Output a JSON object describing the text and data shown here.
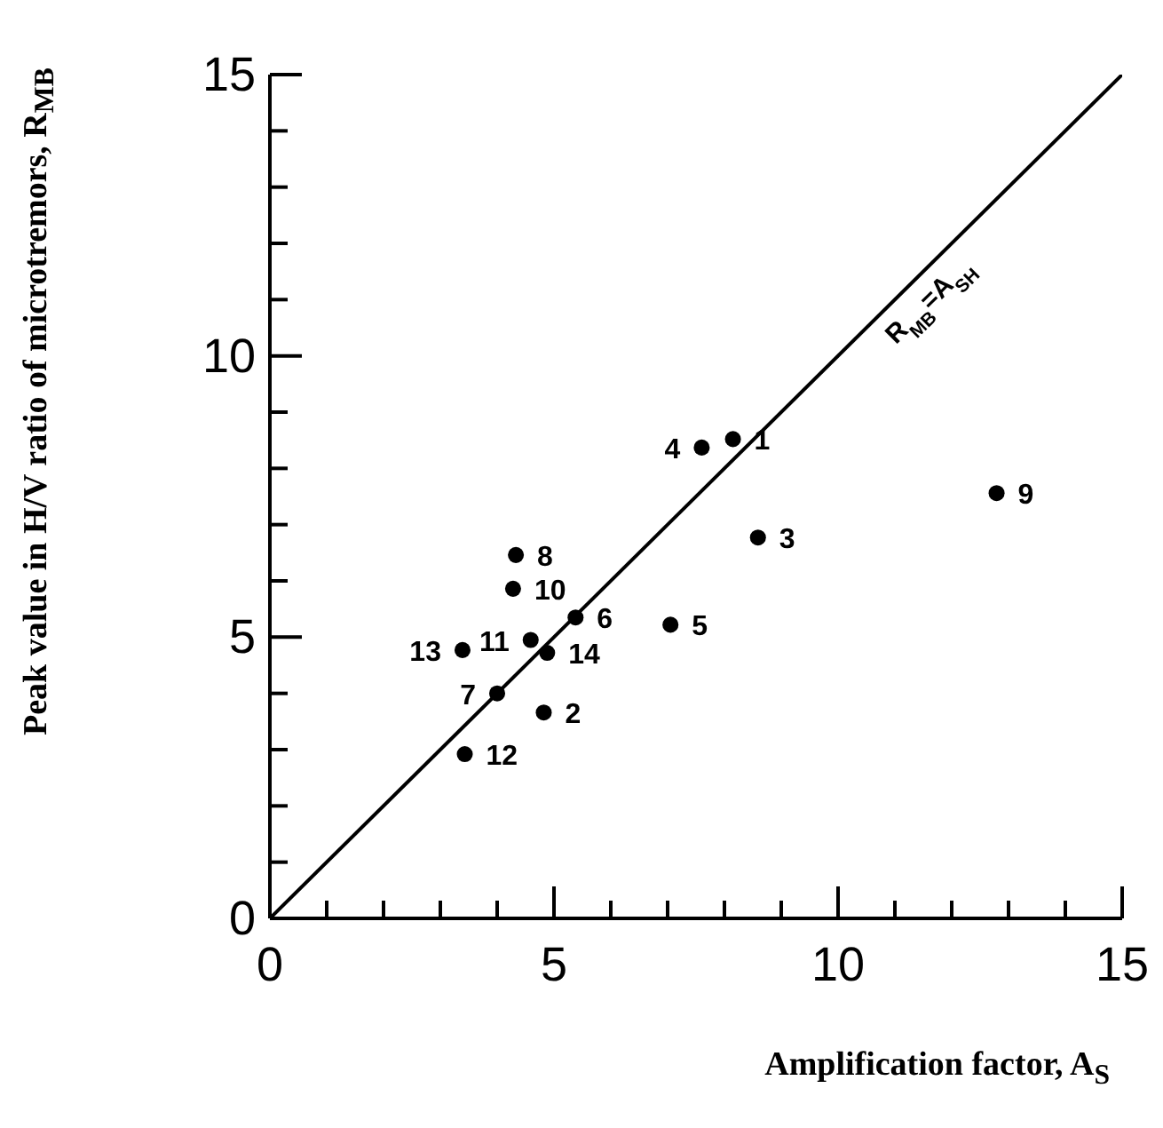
{
  "chart_data": {
    "type": "scatter",
    "xlabel": "Amplification factor,   A$_{S}$",
    "ylabel": "Peak value in H/V ratio of microtremors,   R$_{MB}$",
    "xlim": [
      0,
      15
    ],
    "ylim": [
      0,
      15
    ],
    "xticks": [
      0,
      {
        "value": 1,
        "label": null
      },
      {
        "value": 2,
        "label": null
      },
      {
        "value": 3,
        "label": null
      },
      {
        "value": 4,
        "label": null
      },
      5,
      {
        "value": 6,
        "label": null
      },
      {
        "value": 7,
        "label": null
      },
      {
        "value": 8,
        "label": null
      },
      {
        "value": 9,
        "label": null
      },
      10,
      {
        "value": 11,
        "label": null
      },
      {
        "value": 12,
        "label": null
      },
      {
        "value": 13,
        "label": null
      },
      {
        "value": 14,
        "label": null
      },
      15
    ],
    "yticks": [
      0,
      {
        "value": 1,
        "label": null
      },
      {
        "value": 2,
        "label": null
      },
      {
        "value": 3,
        "label": null
      },
      {
        "value": 4,
        "label": null
      },
      5,
      {
        "value": 6,
        "label": null
      },
      {
        "value": 7,
        "label": null
      },
      {
        "value": 8,
        "label": null
      },
      {
        "value": 9,
        "label": null
      },
      10,
      {
        "value": 11,
        "label": null
      },
      {
        "value": 12,
        "label": null
      },
      {
        "value": 13,
        "label": null
      },
      {
        "value": 14,
        "label": null
      },
      15
    ],
    "series": [
      {
        "marker": "circle",
        "color": "#000000",
        "x": [
          8.15,
          4.82,
          8.59,
          7.6,
          7.05,
          5.38,
          4.0,
          4.33,
          12.79,
          4.28,
          4.59,
          3.43,
          3.39,
          4.88
        ],
        "values": [
          8.52,
          3.66,
          6.77,
          8.37,
          5.22,
          5.35,
          4.0,
          6.46,
          7.56,
          5.86,
          4.95,
          2.92,
          4.77,
          4.72
        ]
      },
      {
        "type": "line",
        "color": "#000000",
        "x": [
          0,
          15
        ],
        "values": [
          0,
          15
        ]
      }
    ],
    "annotations": [
      {
        "text": "1",
        "x": 8.15,
        "y": 8.52
      },
      {
        "text": "2",
        "x": 4.82,
        "y": 3.66
      },
      {
        "text": "3",
        "x": 8.59,
        "y": 6.77
      },
      {
        "text": "4",
        "x": 7.6,
        "y": 8.37
      },
      {
        "text": "5",
        "x": 7.05,
        "y": 5.22
      },
      {
        "text": "6",
        "x": 5.38,
        "y": 5.35
      },
      {
        "text": "7",
        "x": 4.0,
        "y": 4.0
      },
      {
        "text": "8",
        "x": 4.33,
        "y": 6.46
      },
      {
        "text": "9",
        "x": 12.79,
        "y": 7.56
      },
      {
        "text": "10",
        "x": 4.28,
        "y": 5.86
      },
      {
        "text": "11",
        "x": 4.59,
        "y": 4.95
      },
      {
        "text": "12",
        "x": 3.43,
        "y": 2.92
      },
      {
        "text": "13",
        "x": 3.39,
        "y": 4.77
      },
      {
        "text": "14",
        "x": 4.88,
        "y": 4.72
      },
      "R$_{MB}$=A$_{SH}$"
    ]
  }
}
